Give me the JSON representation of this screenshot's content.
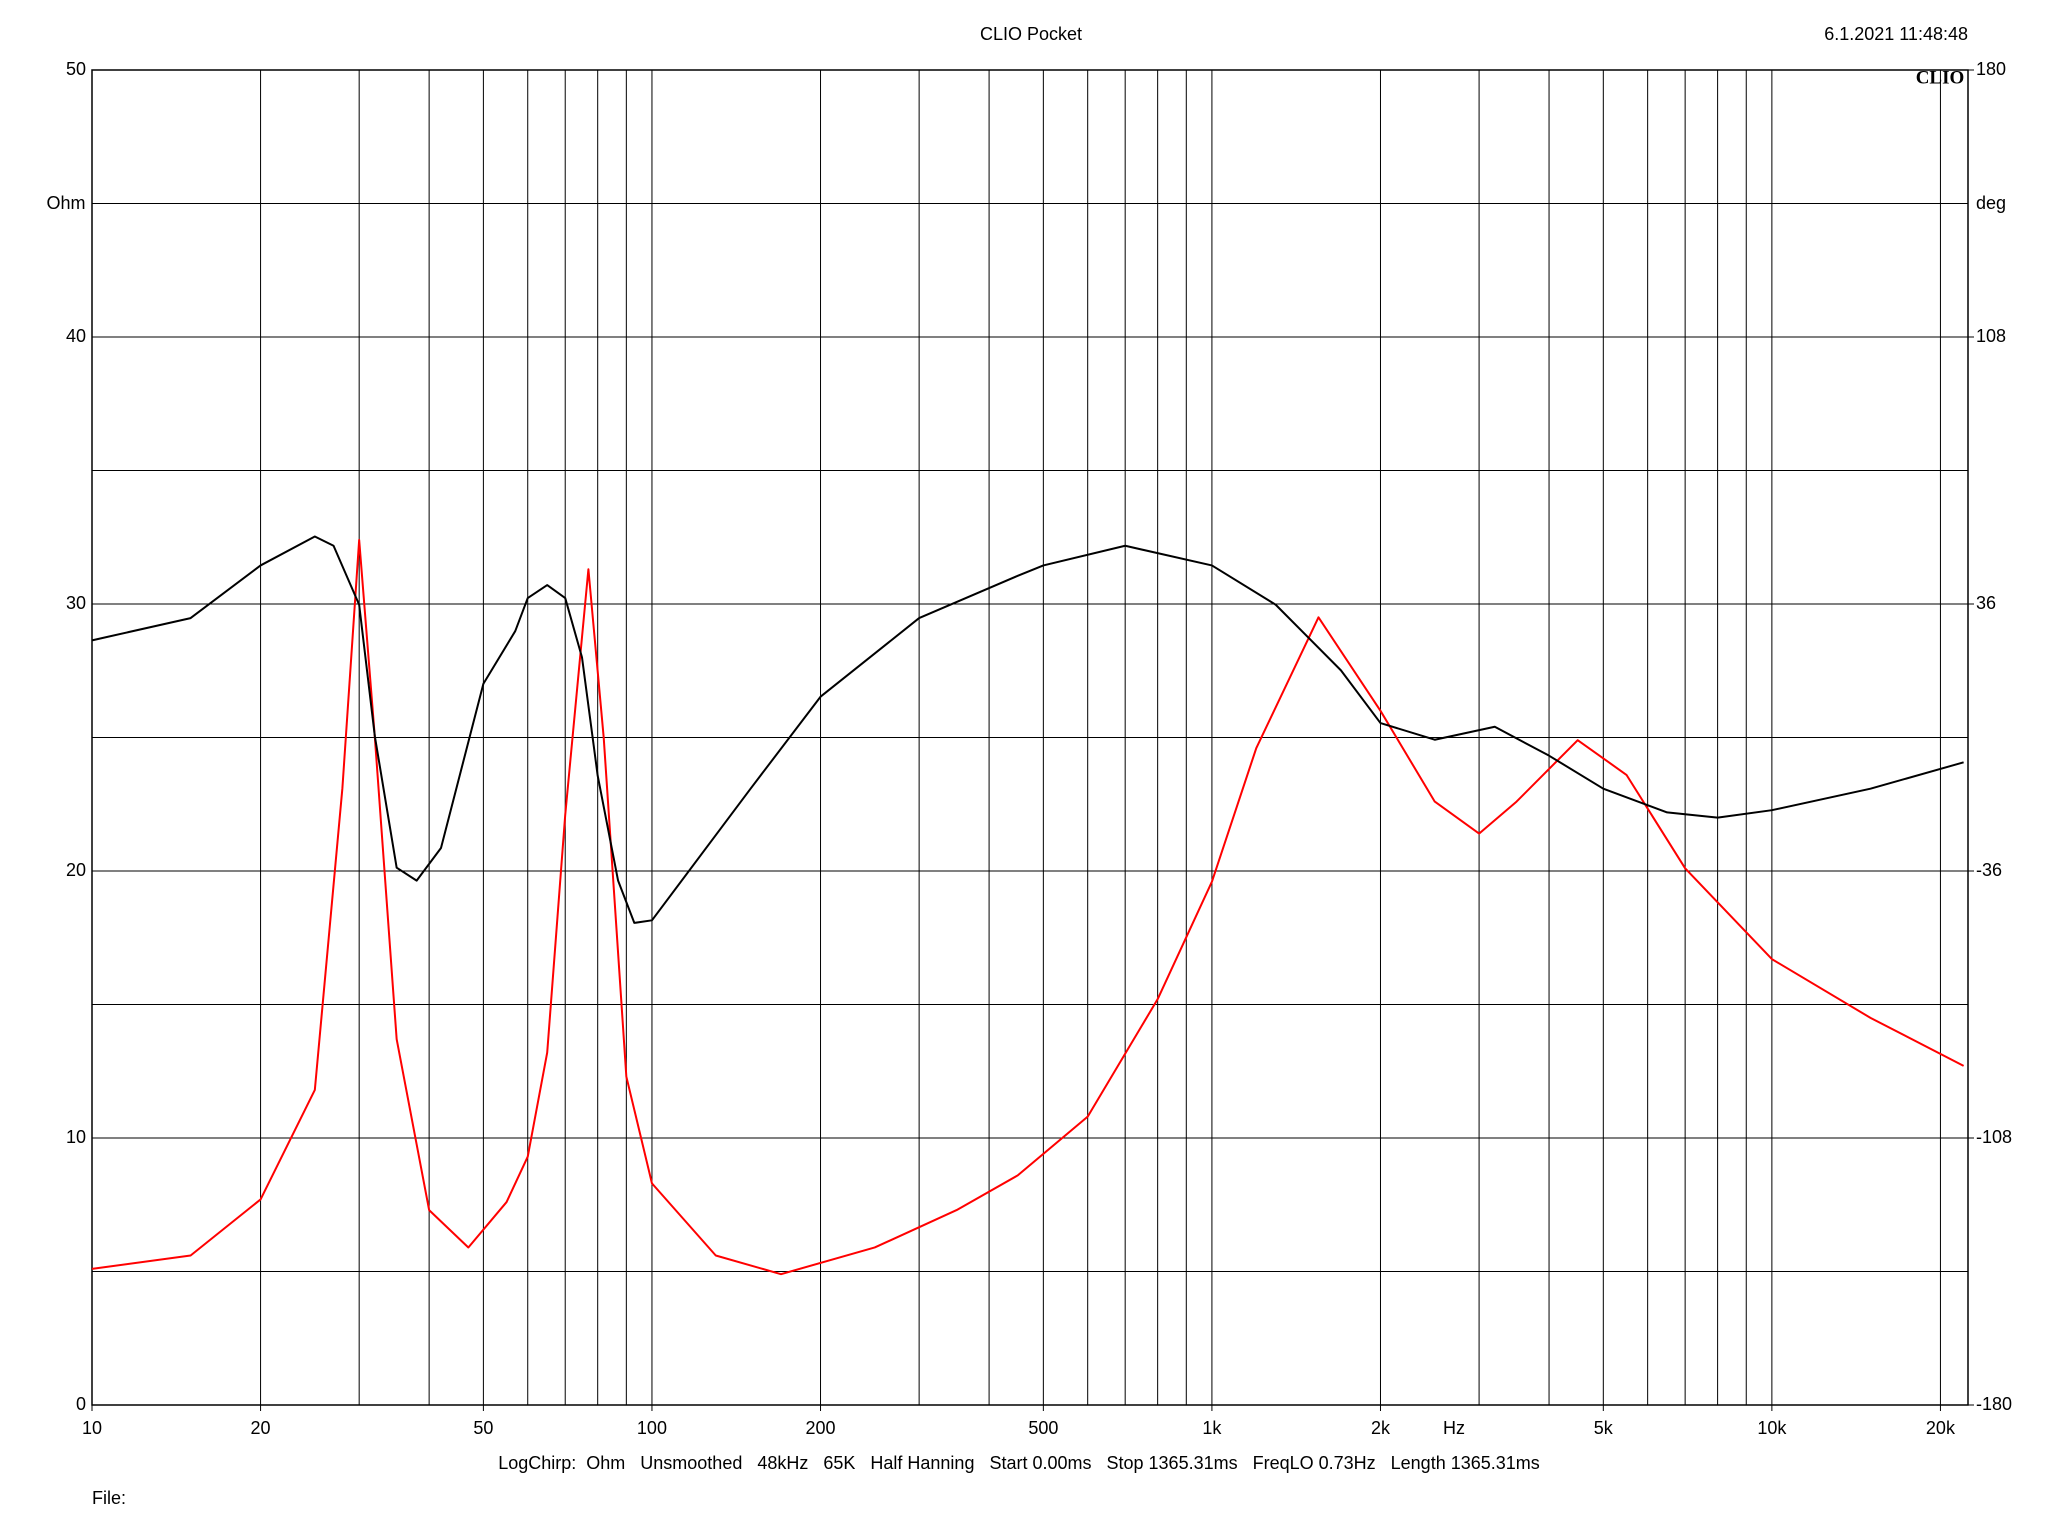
{
  "chart_data": {
    "type": "line",
    "title": "CLIO Pocket",
    "timestamp": "6.1.2021 11:48:48",
    "logo": "CLIO",
    "y_label": "Ohm",
    "y2_label": "deg",
    "x_label": "Hz",
    "footer": "LogChirp:  Ohm   Unsmoothed   48kHz   65K   Half Hanning   Start 0.00ms   Stop 1365.31ms   FreqLO 0.73Hz   Length 1365.31ms",
    "file_label": "File:",
    "x_log": true,
    "xlim": [
      10,
      22400
    ],
    "xticks": [
      10,
      20,
      50,
      100,
      200,
      500,
      {
        "value": 1000,
        "label": "1k"
      },
      {
        "value": 2000,
        "label": "2k"
      },
      {
        "value": 5000,
        "label": "5k"
      },
      {
        "value": 10000,
        "label": "10k"
      },
      {
        "value": 20000,
        "label": "20k"
      }
    ],
    "xgrid": [
      10,
      20,
      30,
      40,
      50,
      60,
      70,
      80,
      90,
      100,
      200,
      300,
      400,
      500,
      600,
      700,
      800,
      900,
      1000,
      2000,
      3000,
      4000,
      5000,
      6000,
      7000,
      8000,
      9000,
      10000,
      20000
    ],
    "ylim": [
      0,
      50
    ],
    "yticks": [
      0,
      10,
      20,
      30,
      40,
      50
    ],
    "ygrid": [
      5,
      15,
      25,
      35,
      45
    ],
    "y2lim": [
      -180,
      180
    ],
    "y2ticks": [
      -180,
      -108,
      -36,
      36,
      108,
      180
    ],
    "grid": true,
    "series": [
      {
        "color": "#ff0000",
        "axis": "y",
        "x": [
          10,
          15,
          20,
          25,
          28,
          30,
          32,
          35,
          40,
          47,
          55,
          60,
          65,
          70,
          77,
          82,
          90,
          100,
          130,
          170,
          250,
          350,
          450,
          600,
          800,
          1000,
          1200,
          1550,
          2000,
          2500,
          3000,
          3500,
          4500,
          5500,
          7000,
          10000,
          15000,
          22000
        ],
        "values": [
          5.1,
          5.6,
          7.7,
          11.8,
          23.1,
          32.4,
          25.0,
          13.7,
          7.3,
          5.9,
          7.6,
          9.3,
          13.2,
          22.1,
          31.3,
          25.0,
          12.3,
          8.3,
          5.6,
          4.9,
          5.9,
          7.3,
          8.6,
          10.8,
          15.2,
          19.6,
          24.6,
          29.5,
          26.0,
          22.6,
          21.4,
          22.6,
          24.9,
          23.6,
          20.1,
          16.7,
          14.5,
          12.7
        ]
      },
      {
        "color": "#000000",
        "axis": "y2",
        "x": [
          10,
          15,
          20,
          25,
          27,
          30,
          32,
          35,
          38,
          42,
          50,
          57,
          60,
          65,
          70,
          75,
          80,
          87,
          93,
          100,
          150,
          200,
          300,
          450,
          500,
          700,
          1000,
          1300,
          1700,
          2000,
          2500,
          3200,
          4000,
          5000,
          6500,
          8000,
          10000,
          15000,
          22000
        ],
        "values": [
          26.2,
          32.2,
          46.4,
          54.2,
          51.7,
          35.8,
          0.3,
          -35.1,
          -38.6,
          -29.8,
          14.5,
          28.7,
          37.6,
          41.1,
          37.6,
          21.6,
          -10.3,
          -38.6,
          -50.0,
          -49.3,
          -13.8,
          11.0,
          32.2,
          43.6,
          46.4,
          51.7,
          46.4,
          35.8,
          18.1,
          3.9,
          -0.6,
          2.9,
          -4.9,
          -13.8,
          -20.2,
          -21.6,
          -19.6,
          -13.8,
          -6.7
        ]
      }
    ]
  }
}
